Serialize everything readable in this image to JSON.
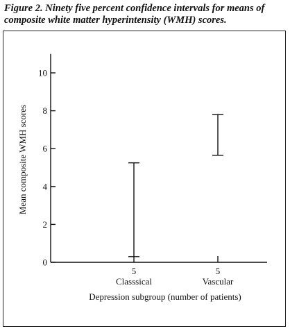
{
  "caption": {
    "line1": "Figure 2. Ninety five percent confidence intervals for means of",
    "line2": "composite white matter hyperintensity (WMH) scores."
  },
  "chart_data": {
    "type": "errorbar",
    "categories": [
      "Classsical",
      "Vascular"
    ],
    "counts": [
      "5",
      "5"
    ],
    "intervals": [
      {
        "category": "Classsical",
        "lower": 0.3,
        "upper": 5.25
      },
      {
        "category": "Vascular",
        "lower": 5.65,
        "upper": 7.8
      }
    ],
    "xlabel": "Depression subgroup (number of patients)",
    "ylabel": "Mean composite WMH scores",
    "ylim": [
      0,
      11
    ],
    "yticks": [
      0,
      2,
      4,
      6,
      8,
      10
    ],
    "grid": false
  }
}
